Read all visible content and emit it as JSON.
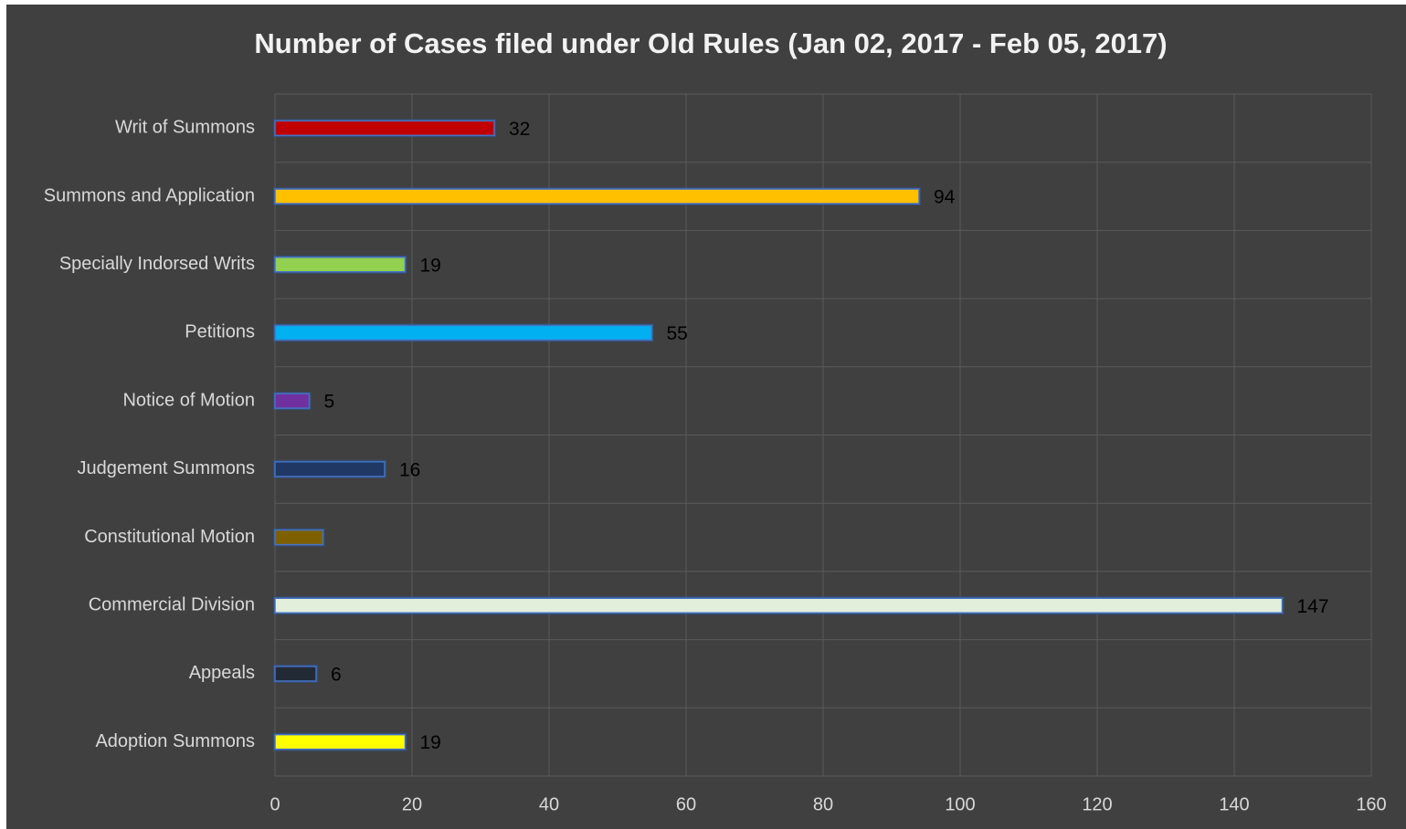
{
  "chart_data": {
    "type": "bar",
    "orientation": "horizontal",
    "title": "Number of Cases filed under Old Rules (Jan 02, 2017 - Feb 05, 2017)",
    "categories": [
      "Writ of Summons",
      "Summons and Application",
      "Specially Indorsed Writs",
      "Petitions",
      "Notice of Motion",
      "Judgement Summons",
      "Constitutional Motion",
      "Commercial Division",
      "Appeals",
      "Adoption Summons"
    ],
    "values": [
      32,
      94,
      19,
      55,
      5,
      16,
      7,
      147,
      6,
      19
    ],
    "value_labels": [
      "32",
      "94",
      "19",
      "55",
      "5",
      "16",
      null,
      "147",
      "6",
      "19"
    ],
    "colors": [
      "#c00000",
      "#ffc000",
      "#92d050",
      "#00b0f0",
      "#7030a0",
      "#1f3864",
      "#7f6000",
      "#e2efda",
      "#222a35",
      "#ffff00"
    ],
    "xlim": [
      0,
      160
    ],
    "xticks": [
      0,
      20,
      40,
      60,
      80,
      100,
      120,
      140,
      160
    ],
    "grid": true
  }
}
